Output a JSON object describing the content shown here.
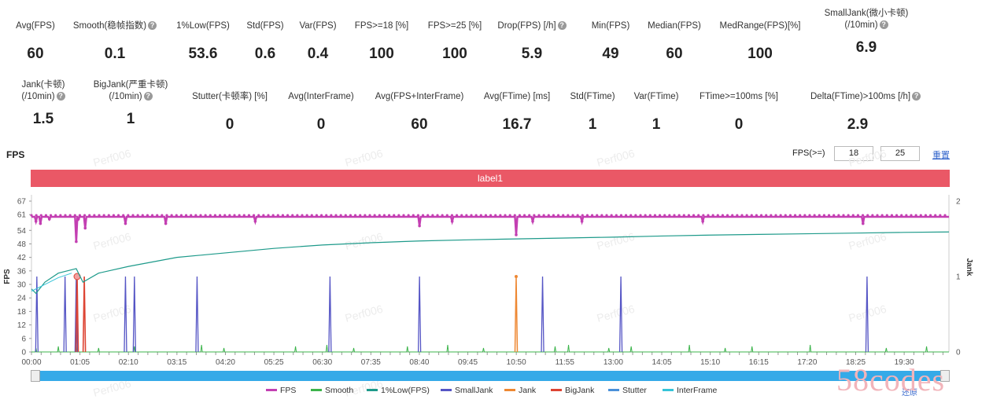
{
  "stats_row1": [
    {
      "label": "Avg(FPS)",
      "value": "60",
      "help": false
    },
    {
      "label": "Smooth(稳帧指数)",
      "value": "0.1",
      "help": true
    },
    {
      "label": "1%Low(FPS)",
      "value": "53.6",
      "help": false
    },
    {
      "label": "Std(FPS)",
      "value": "0.6",
      "help": false
    },
    {
      "label": "Var(FPS)",
      "value": "0.4",
      "help": false
    },
    {
      "label": "FPS>=18 [%]",
      "value": "100",
      "help": false
    },
    {
      "label": "FPS>=25 [%]",
      "value": "100",
      "help": false
    },
    {
      "label": "Drop(FPS) [/h]",
      "value": "5.9",
      "help": true
    },
    {
      "label": "Min(FPS)",
      "value": "49",
      "help": false
    },
    {
      "label": "Median(FPS)",
      "value": "60",
      "help": false
    },
    {
      "label": "MedRange(FPS)[%]",
      "value": "100",
      "help": false
    },
    {
      "label": "SmallJank(微小卡顿)",
      "label2": "(/10min)",
      "value": "6.9",
      "help": true
    }
  ],
  "stats_row2": [
    {
      "label": "Jank(卡顿)",
      "label2": "(/10min)",
      "value": "1.5",
      "help": true
    },
    {
      "label": "BigJank(严重卡顿)",
      "label2": "(/10min)",
      "value": "1",
      "help": true
    },
    {
      "label": "Stutter(卡顿率) [%]",
      "value": "0",
      "help": false
    },
    {
      "label": "Avg(InterFrame)",
      "value": "0",
      "help": false
    },
    {
      "label": "Avg(FPS+InterFrame)",
      "value": "60",
      "help": false
    },
    {
      "label": "Avg(FTime) [ms]",
      "value": "16.7",
      "help": false
    },
    {
      "label": "Std(FTime)",
      "value": "1",
      "help": false
    },
    {
      "label": "Var(FTime)",
      "value": "1",
      "help": false
    },
    {
      "label": "FTime>=100ms [%]",
      "value": "0",
      "help": false
    },
    {
      "label": "Delta(FTime)>100ms [/h]",
      "value": "2.9",
      "help": true
    }
  ],
  "section_title": "FPS",
  "threshold": {
    "label": "FPS(>=)",
    "v1": "18",
    "v2": "25",
    "reset": "重置"
  },
  "band_label": "label1",
  "watermark": "Perf006",
  "restore_label": "还原",
  "corner_brand": "58codes",
  "colors": {
    "fps": "#c33fb2",
    "smooth": "#3cb44b",
    "low": "#1d9a8a",
    "smalljank": "#5555c5",
    "jank": "#ee8833",
    "bigjank": "#dd4433",
    "stutter": "#4a90d9",
    "interframe": "#35c4d8",
    "band": "#ea5866"
  },
  "chart_data": {
    "type": "line",
    "xlabel": "",
    "ylabel": "FPS",
    "y2label": "Jank",
    "ylim": [
      0,
      67
    ],
    "y2lim": [
      0,
      2
    ],
    "yticks": [
      0,
      6,
      12,
      18,
      24,
      30,
      36,
      42,
      48,
      54,
      61,
      67
    ],
    "y2ticks": [
      0,
      1,
      2
    ],
    "xticks": [
      "00:00",
      "01:05",
      "02:10",
      "03:15",
      "04:20",
      "05:25",
      "06:30",
      "07:35",
      "08:40",
      "09:45",
      "10:50",
      "11:55",
      "13:00",
      "14:05",
      "15:10",
      "16:15",
      "17:20",
      "18:25",
      "19:30"
    ],
    "x_range_min": [
      0,
      20.5
    ],
    "series": [
      {
        "name": "FPS",
        "base": 60,
        "dips": [
          [
            0.1,
            58
          ],
          [
            0.2,
            57
          ],
          [
            0.4,
            59
          ],
          [
            1.0,
            49
          ],
          [
            1.05,
            59
          ],
          [
            1.2,
            55
          ],
          [
            2.1,
            57
          ],
          [
            3.0,
            57
          ],
          [
            5.0,
            58
          ],
          [
            8.67,
            56
          ],
          [
            9.4,
            58
          ],
          [
            10.83,
            52
          ],
          [
            11.2,
            58
          ],
          [
            12.3,
            58
          ],
          [
            15.0,
            58
          ],
          [
            18.58,
            57
          ]
        ]
      },
      {
        "name": "Smooth"
      },
      {
        "name": "1%Low(FPS)",
        "points": [
          [
            0,
            28
          ],
          [
            0.1,
            26
          ],
          [
            0.3,
            31
          ],
          [
            0.6,
            35
          ],
          [
            1.0,
            37
          ],
          [
            1.15,
            31
          ],
          [
            1.5,
            35
          ],
          [
            2.17,
            38
          ],
          [
            3.25,
            42
          ],
          [
            4.33,
            44
          ],
          [
            5.42,
            46
          ],
          [
            6.5,
            47.5
          ],
          [
            7.58,
            48.5
          ],
          [
            8.67,
            49.3
          ],
          [
            9.75,
            49.8
          ],
          [
            10.83,
            50.2
          ],
          [
            11.92,
            50.6
          ],
          [
            13.0,
            51.0
          ],
          [
            14.08,
            51.5
          ],
          [
            15.17,
            51.9
          ],
          [
            16.25,
            52.2
          ],
          [
            17.33,
            52.5
          ],
          [
            18.42,
            52.8
          ],
          [
            19.5,
            53.1
          ],
          [
            20.5,
            53.3
          ]
        ]
      },
      {
        "name": "SmallJank",
        "spikes": [
          0.12,
          0.75,
          1.0,
          2.1,
          2.3,
          3.7,
          6.67,
          8.67,
          11.42,
          13.17,
          18.67
        ]
      },
      {
        "name": "Jank",
        "spikes": [
          10.83
        ]
      },
      {
        "name": "BigJank",
        "spikes": [
          1.02,
          1.18
        ]
      },
      {
        "name": "Stutter"
      },
      {
        "name": "InterFrame"
      }
    ]
  }
}
